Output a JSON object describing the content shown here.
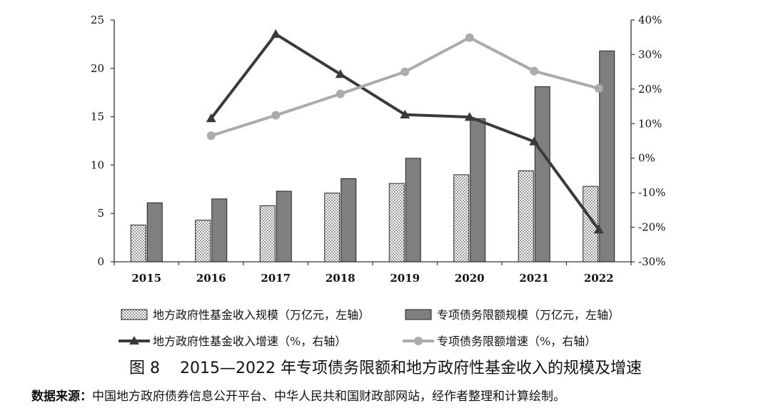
{
  "caption": {
    "number": "图 8",
    "title": "2015—2022 年专项债务限额和地方政府性基金收入的规模及增速"
  },
  "source": {
    "label": "数据来源：",
    "text": "中国地方政府债券信息公开平台、中华人民共和国财政部网站，经作者整理和计算绘制。"
  },
  "chart_data": {
    "type": "bar",
    "categories": [
      "2015",
      "2016",
      "2017",
      "2018",
      "2019",
      "2020",
      "2021",
      "2022"
    ],
    "left_axis": {
      "ylim": [
        0,
        25
      ],
      "ticks": [
        "0",
        "5",
        "10",
        "15",
        "20",
        "25"
      ]
    },
    "right_axis": {
      "ylim": [
        -30,
        40
      ],
      "ticks": [
        "-30%",
        "-20%",
        "-10%",
        "0%",
        "10%",
        "20%",
        "30%",
        "40%"
      ]
    },
    "grid": false,
    "legend_position": "bottom",
    "series": [
      {
        "name": "地方政府性基金收入规模（万亿元，左轴）",
        "kind": "bar",
        "axis": "left",
        "pattern": "dotted",
        "color": "#ffffff",
        "values": [
          3.8,
          4.3,
          5.8,
          7.1,
          8.1,
          9.0,
          9.4,
          7.8
        ]
      },
      {
        "name": "专项债务限额规模（万亿元，左轴）",
        "kind": "bar",
        "axis": "left",
        "color": "#7f7f7f",
        "values": [
          6.1,
          6.5,
          7.3,
          8.6,
          10.7,
          14.8,
          18.1,
          21.8
        ]
      },
      {
        "name": "地方政府性基金收入增速（%，右轴）",
        "kind": "line",
        "axis": "right",
        "marker": "triangle",
        "color": "#3a3a3a",
        "values": [
          null,
          11.5,
          35.9,
          24.3,
          12.6,
          11.9,
          4.8,
          -20.7
        ]
      },
      {
        "name": "专项债务限额增速（%，右轴）",
        "kind": "line",
        "axis": "right",
        "marker": "circle",
        "color": "#ababab",
        "values": [
          null,
          6.5,
          12.4,
          18.6,
          25.0,
          34.9,
          25.2,
          20.2
        ]
      }
    ]
  }
}
